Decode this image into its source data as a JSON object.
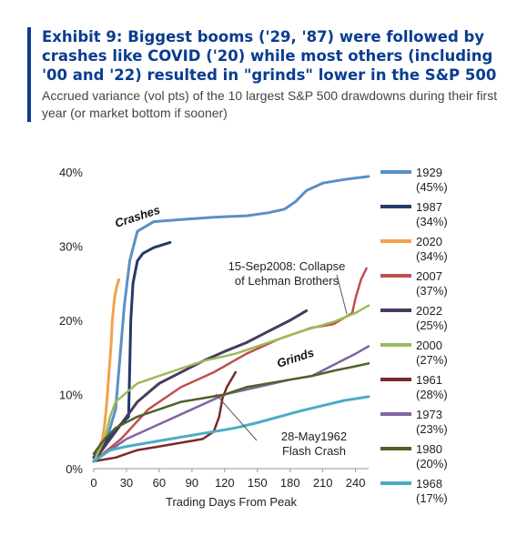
{
  "header": {
    "title": "Exhibit 9: Biggest booms ('29, '87) were followed by crashes like COVID ('20) while most others (including '00 and '22) resulted in \"grinds\" lower in the S&P 500",
    "subtitle": "Accrued variance (vol pts) of the 10 largest S&P 500 drawdowns during their first year (or market bottom if sooner)"
  },
  "chart_data": {
    "type": "line",
    "title": "",
    "xlabel": "Trading Days From Peak",
    "ylabel": "",
    "xlim": [
      0,
      252
    ],
    "ylim": [
      0,
      40
    ],
    "x_ticks": [
      0,
      30,
      60,
      90,
      120,
      150,
      180,
      210,
      240
    ],
    "y_ticks": [
      0,
      10,
      20,
      30,
      40
    ],
    "y_tick_labels": [
      "0%",
      "10%",
      "20%",
      "30%",
      "40%"
    ],
    "legend_position": "right",
    "series": [
      {
        "name": "1929",
        "legend_sub": "(45%)",
        "color": "#5b8fc7",
        "width": 3,
        "points": [
          [
            0,
            1
          ],
          [
            10,
            3
          ],
          [
            20,
            8
          ],
          [
            28,
            22
          ],
          [
            33,
            28
          ],
          [
            40,
            32
          ],
          [
            55,
            33.3
          ],
          [
            80,
            33.6
          ],
          [
            110,
            33.9
          ],
          [
            140,
            34.1
          ],
          [
            160,
            34.5
          ],
          [
            175,
            35
          ],
          [
            185,
            36
          ],
          [
            195,
            37.5
          ],
          [
            210,
            38.5
          ],
          [
            230,
            39
          ],
          [
            252,
            39.4
          ]
        ]
      },
      {
        "name": "1987",
        "legend_sub": "(34%)",
        "color": "#233a6b",
        "width": 3,
        "points": [
          [
            0,
            1.5
          ],
          [
            15,
            4.5
          ],
          [
            25,
            6
          ],
          [
            32,
            7
          ],
          [
            34,
            20
          ],
          [
            36,
            25
          ],
          [
            40,
            28
          ],
          [
            45,
            29
          ],
          [
            55,
            29.8
          ],
          [
            70,
            30.5
          ]
        ]
      },
      {
        "name": "2020",
        "legend_sub": "(34%)",
        "color": "#f4a24b",
        "width": 3,
        "points": [
          [
            0,
            2
          ],
          [
            5,
            3
          ],
          [
            8,
            4
          ],
          [
            10,
            6
          ],
          [
            12,
            9
          ],
          [
            14,
            13
          ],
          [
            16,
            17
          ],
          [
            17,
            20
          ],
          [
            19,
            23
          ],
          [
            21,
            24.5
          ],
          [
            23,
            25.5
          ]
        ]
      },
      {
        "name": "2007",
        "legend_sub": "(37%)",
        "color": "#c0504d",
        "width": 2.5,
        "points": [
          [
            0,
            1
          ],
          [
            25,
            4
          ],
          [
            50,
            8
          ],
          [
            80,
            11
          ],
          [
            110,
            13
          ],
          [
            140,
            15.5
          ],
          [
            170,
            17.5
          ],
          [
            200,
            19
          ],
          [
            220,
            19.5
          ],
          [
            237,
            21
          ],
          [
            240,
            23
          ],
          [
            245,
            25.5
          ],
          [
            250,
            27
          ]
        ]
      },
      {
        "name": "2022",
        "legend_sub": "(25%)",
        "color": "#4a3a5e",
        "width": 3,
        "points": [
          [
            0,
            1
          ],
          [
            20,
            5
          ],
          [
            40,
            9
          ],
          [
            60,
            11.5
          ],
          [
            80,
            13
          ],
          [
            100,
            14.5
          ],
          [
            120,
            15.8
          ],
          [
            140,
            17
          ],
          [
            160,
            18.5
          ],
          [
            180,
            20
          ],
          [
            195,
            21.3
          ]
        ]
      },
      {
        "name": "2000",
        "legend_sub": "(27%)",
        "color": "#9bbb59",
        "width": 2.5,
        "points": [
          [
            0,
            1
          ],
          [
            10,
            4
          ],
          [
            15,
            7
          ],
          [
            20,
            9
          ],
          [
            40,
            11.5
          ],
          [
            60,
            12.5
          ],
          [
            80,
            13.5
          ],
          [
            100,
            14.5
          ],
          [
            130,
            15.5
          ],
          [
            160,
            17
          ],
          [
            190,
            18.5
          ],
          [
            220,
            19.8
          ],
          [
            240,
            21
          ],
          [
            252,
            22
          ]
        ]
      },
      {
        "name": "1961",
        "legend_sub": "(28%)",
        "color": "#7a2a2a",
        "width": 2.5,
        "points": [
          [
            0,
            1
          ],
          [
            20,
            1.5
          ],
          [
            40,
            2.5
          ],
          [
            60,
            3
          ],
          [
            80,
            3.5
          ],
          [
            100,
            4
          ],
          [
            110,
            5
          ],
          [
            115,
            7
          ],
          [
            118,
            9.5
          ],
          [
            122,
            11
          ],
          [
            130,
            13
          ]
        ]
      },
      {
        "name": "1973",
        "legend_sub": "(23%)",
        "color": "#8064a2",
        "width": 2.5,
        "points": [
          [
            0,
            1
          ],
          [
            30,
            4
          ],
          [
            60,
            6
          ],
          [
            90,
            8
          ],
          [
            120,
            10
          ],
          [
            150,
            11
          ],
          [
            180,
            12
          ],
          [
            200,
            12.5
          ],
          [
            220,
            14
          ],
          [
            240,
            15.5
          ],
          [
            252,
            16.5
          ]
        ]
      },
      {
        "name": "1980",
        "legend_sub": "(20%)",
        "color": "#4f6228",
        "width": 2.5,
        "points": [
          [
            0,
            2
          ],
          [
            10,
            4
          ],
          [
            20,
            5.5
          ],
          [
            40,
            7
          ],
          [
            60,
            8
          ],
          [
            80,
            9
          ],
          [
            100,
            9.5
          ],
          [
            120,
            10
          ],
          [
            140,
            11
          ],
          [
            160,
            11.5
          ],
          [
            180,
            12
          ],
          [
            200,
            12.5
          ],
          [
            220,
            13.2
          ],
          [
            240,
            13.8
          ],
          [
            252,
            14.2
          ]
        ]
      },
      {
        "name": "1968",
        "legend_sub": "(17%)",
        "color": "#4bacc6",
        "width": 3,
        "points": [
          [
            0,
            1
          ],
          [
            15,
            2.5
          ],
          [
            30,
            3
          ],
          [
            50,
            3.5
          ],
          [
            70,
            4
          ],
          [
            90,
            4.5
          ],
          [
            110,
            5
          ],
          [
            130,
            5.5
          ],
          [
            150,
            6.2
          ],
          [
            170,
            7
          ],
          [
            190,
            7.8
          ],
          [
            210,
            8.5
          ],
          [
            230,
            9.2
          ],
          [
            252,
            9.7
          ]
        ]
      }
    ],
    "annotations": {
      "crashes": "Crashes",
      "grinds": "Grinds",
      "lehman": [
        "15-Sep2008: Collapse",
        "of Lehman Brothers"
      ],
      "flash": [
        "28-May1962",
        "Flash Crash"
      ]
    }
  }
}
